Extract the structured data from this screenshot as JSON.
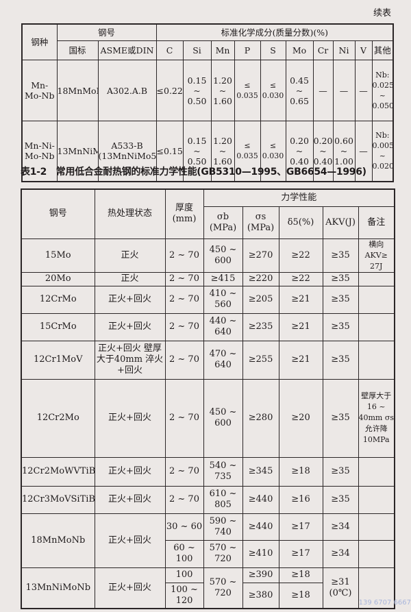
{
  "continued_label": "续表",
  "table1": {
    "headers": {
      "grade_type": "钢种",
      "steel_no": "钢号",
      "national": "国标",
      "asme_din": "ASME或DIN",
      "composition": "标准化学成分(质量分数)(%)",
      "elements": [
        "C",
        "Si",
        "Mn",
        "P",
        "S",
        "Mo",
        "Cr",
        "Ni",
        "V",
        "其他"
      ]
    },
    "rows": [
      {
        "type": "Mn-Mo-Nb",
        "national": "18MnMoNb",
        "asme": "A302.A.B",
        "C": "≤0.22",
        "Si": "0.15 ~ 0.50",
        "Mn": "1.20 ~ 1.60",
        "P": "≤ 0.035",
        "S": "≤ 0.030",
        "Mo": "0.45 ~ 0.65",
        "Cr": "—",
        "Ni": "—",
        "V": "—",
        "other": "Nb: 0.025 ~ 0.050"
      },
      {
        "type": "Mn-Ni-Mo-Nb",
        "national": "13MnNiMoNb",
        "asme": "A533-B (13MnNiMo54)",
        "C": "≤0.15",
        "Si": "0.15 ~ 0.50",
        "Mn": "1.20 ~ 1.60",
        "P": "≤ 0.035",
        "S": "≤ 0.030",
        "Mo": "0.20 ~ 0.40",
        "Cr": "0.20 ~ 0.40",
        "Ni": "0.60 ~ 1.00",
        "V": "—",
        "other": "Nb: 0.005 ~ 0.020"
      }
    ]
  },
  "table2": {
    "caption": "表1-2　常用低合金耐热钢的标准力学性能(GB5310—1995、GB6654—1996)",
    "headers": {
      "steel_no": "钢号",
      "heat_treatment": "热处理状态",
      "thickness": "厚度 (mm)",
      "mech": "力学性能",
      "sigma_b": "σb (MPa)",
      "sigma_s": "σs (MPa)",
      "delta": "δ5(%)",
      "akv": "AKV(J)",
      "remark": "备注"
    },
    "rows": [
      {
        "steel": "15Mo",
        "ht": "正火",
        "thk": "2 ~ 70",
        "sb": "450 ~ 600",
        "ss": "≥270",
        "d": "≥22",
        "akv": "≥35",
        "remark": "横向 AKV≥ 27J"
      },
      {
        "steel": "20Mo",
        "ht": "正火",
        "thk": "2 ~ 70",
        "sb": "≥415",
        "ss": "≥220",
        "d": "≥22",
        "akv": "≥35",
        "remark": ""
      },
      {
        "steel": "12CrMo",
        "ht": "正火+回火",
        "thk": "2 ~ 70",
        "sb": "410 ~ 560",
        "ss": "≥205",
        "d": "≥21",
        "akv": "≥35",
        "remark": ""
      },
      {
        "steel": "15CrMo",
        "ht": "正火+回火",
        "thk": "2 ~ 70",
        "sb": "440 ~ 640",
        "ss": "≥235",
        "d": "≥21",
        "akv": "≥35",
        "remark": ""
      },
      {
        "steel": "12Cr1MoV",
        "ht": "正火+回火 壁厚大于40mm 淬火+回火",
        "thk": "2 ~ 70",
        "sb": "470 ~ 640",
        "ss": "≥255",
        "d": "≥21",
        "akv": "≥35",
        "remark": ""
      },
      {
        "steel": "12Cr2Mo",
        "ht": "正火+回火",
        "thk": "2 ~ 70",
        "sb": "450 ~ 600",
        "ss": "≥280",
        "d": "≥20",
        "akv": "≥35",
        "remark": "壁厚大于16 ~ 40mm σs允许降 10MPa"
      },
      {
        "steel": "12Cr2MoWVTiB",
        "ht": "正火+回火",
        "thk": "2 ~ 70",
        "sb": "540 ~ 735",
        "ss": "≥345",
        "d": "≥18",
        "akv": "≥35",
        "remark": ""
      },
      {
        "steel": "12Cr3MoVSiTiB",
        "ht": "正火+回火",
        "thk": "2 ~ 70",
        "sb": "610 ~ 805",
        "ss": "≥440",
        "d": "≥16",
        "akv": "≥35",
        "remark": ""
      }
    ],
    "row_18MnMoNb": {
      "steel": "18MnMoNb",
      "ht": "正火+回火",
      "sub": [
        {
          "thk": "30 ~ 60",
          "sb": "590 ~ 740",
          "ss": "≥440",
          "d": "≥17",
          "akv": "≥34"
        },
        {
          "thk": "60 ~ 100",
          "sb": "570 ~ 720",
          "ss": "≥410",
          "d": "≥17",
          "akv": "≥34"
        }
      ]
    },
    "row_13MnNiMoNb": {
      "steel": "13MnNiMoNb",
      "ht": "正火+回火",
      "sb": "570 ~ 720",
      "akv": "≥31 (0℃)",
      "sub": [
        {
          "thk": "100",
          "ss": "≥390",
          "d": "≥18"
        },
        {
          "thk": "100 ~ 120",
          "ss": "≥380",
          "d": "≥18"
        }
      ]
    }
  },
  "watermark": "139 6707 6667"
}
